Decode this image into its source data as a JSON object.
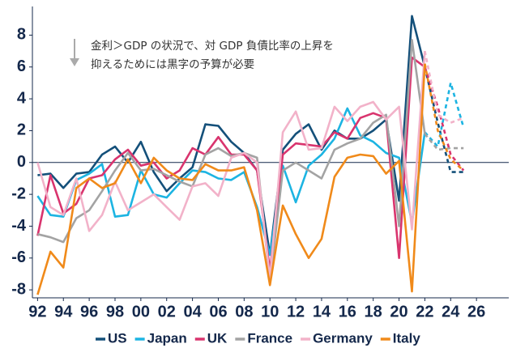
{
  "chart_data": {
    "type": "line",
    "annotation": [
      "金利＞GDP の状況で、対 GDP 負債比率の上昇を",
      "抑えるためには黒字の予算が必要"
    ],
    "x": [
      1992,
      1993,
      1994,
      1995,
      1996,
      1997,
      1998,
      1999,
      2000,
      2001,
      2002,
      2003,
      2004,
      2005,
      2006,
      2007,
      2008,
      2009,
      2010,
      2011,
      2012,
      2013,
      2014,
      2015,
      2016,
      2017,
      2018,
      2019,
      2020,
      2021,
      2022,
      2023,
      2024,
      2025
    ],
    "dashed_from": 2022,
    "series": [
      {
        "name": "US",
        "color": "#14507a",
        "values": [
          -0.8,
          -0.7,
          -1.6,
          -0.7,
          -0.6,
          0.5,
          1.0,
          0.0,
          1.3,
          -0.6,
          -1.8,
          -1.0,
          -0.3,
          2.4,
          2.3,
          1.3,
          0.6,
          -0.5,
          -5.8,
          0.8,
          1.8,
          2.4,
          0.8,
          2.0,
          1.5,
          1.5,
          2.0,
          2.7,
          -2.4,
          9.2,
          6.0,
          2.5,
          -0.6,
          -0.6
        ]
      },
      {
        "name": "Japan",
        "color": "#1cb4e2",
        "values": [
          -2.1,
          -3.3,
          -3.4,
          -1.1,
          -0.7,
          -0.1,
          -3.4,
          -3.3,
          -0.5,
          -2.0,
          -2.2,
          -1.3,
          -0.5,
          -0.6,
          -1.0,
          -1.1,
          -0.6,
          -2.8,
          -5.8,
          -0.2,
          -2.5,
          -0.2,
          0.5,
          1.5,
          3.4,
          1.7,
          1.3,
          0.6,
          0.3,
          -3.8,
          1.9,
          1.0,
          5.0,
          2.2
        ]
      },
      {
        "name": "UK",
        "color": "#d9346e",
        "values": [
          -4.6,
          -0.8,
          -3.2,
          -2.6,
          -1.0,
          -0.8,
          0.2,
          0.8,
          -0.2,
          0.0,
          -1.0,
          -0.5,
          0.9,
          0.5,
          1.6,
          0.5,
          0.5,
          -0.5,
          -6.8,
          0.5,
          1.2,
          1.1,
          1.0,
          1.9,
          1.5,
          2.8,
          3.1,
          2.8,
          -6.0,
          6.6,
          6.0,
          3.5,
          0.5,
          -0.5
        ]
      },
      {
        "name": "France",
        "color": "#a3a3a3",
        "values": [
          -4.5,
          -4.7,
          -5.0,
          -3.5,
          -3.0,
          -1.8,
          -0.5,
          0.6,
          -0.5,
          -0.4,
          -0.8,
          -1.2,
          -1.5,
          0.5,
          0.9,
          0.4,
          0.6,
          0.3,
          -7.5,
          -0.5,
          0.0,
          -0.5,
          -1.0,
          0.8,
          1.2,
          1.5,
          2.5,
          3.0,
          -4.0,
          7.7,
          1.8,
          0.8,
          0.9,
          0.9
        ]
      },
      {
        "name": "Germany",
        "color": "#f2b2c9",
        "values": [
          0.0,
          -2.8,
          -3.3,
          -1.0,
          -4.3,
          -3.3,
          -1.2,
          -3.0,
          -2.5,
          -2.0,
          -2.8,
          -3.6,
          -1.5,
          -1.3,
          -2.1,
          0.3,
          0.6,
          0.0,
          -7.3,
          1.9,
          3.2,
          0.8,
          0.9,
          3.5,
          2.6,
          3.5,
          3.8,
          2.7,
          3.5,
          -4.2,
          7.0,
          3.0,
          2.5,
          2.8
        ]
      },
      {
        "name": "Italy",
        "color": "#f08a1a",
        "values": [
          -8.3,
          -5.6,
          -6.6,
          -1.6,
          -1.0,
          -1.6,
          -1.3,
          0.2,
          -1.3,
          0.3,
          -0.5,
          -1.0,
          -1.1,
          -0.1,
          -0.5,
          -0.5,
          -0.3,
          -3.0,
          -7.7,
          -2.7,
          -4.5,
          -6.0,
          -4.8,
          -0.9,
          0.3,
          0.5,
          0.4,
          -0.7,
          0.1,
          -8.1,
          6.2,
          2.0,
          0.2,
          -0.5
        ]
      }
    ],
    "xlim": [
      1991.6,
      2028.5
    ],
    "ylim": [
      -8.5,
      9.8
    ],
    "xticks": [
      {
        "value": 1992,
        "label": "92"
      },
      {
        "value": 1994,
        "label": "94"
      },
      {
        "value": 1996,
        "label": "96"
      },
      {
        "value": 1998,
        "label": "98"
      },
      {
        "value": 2000,
        "label": "00"
      },
      {
        "value": 2002,
        "label": "02"
      },
      {
        "value": 2004,
        "label": "04"
      },
      {
        "value": 2006,
        "label": "06"
      },
      {
        "value": 2008,
        "label": "08"
      },
      {
        "value": 2010,
        "label": "10"
      },
      {
        "value": 2012,
        "label": "12"
      },
      {
        "value": 2014,
        "label": "14"
      },
      {
        "value": 2016,
        "label": "16"
      },
      {
        "value": 2018,
        "label": "18"
      },
      {
        "value": 2020,
        "label": "20"
      },
      {
        "value": 2022,
        "label": "22"
      },
      {
        "value": 2024,
        "label": "24"
      },
      {
        "value": 2026,
        "label": "26"
      }
    ],
    "yticks": [
      -8,
      -6,
      -4,
      -2,
      0,
      2,
      4,
      6,
      8
    ]
  }
}
